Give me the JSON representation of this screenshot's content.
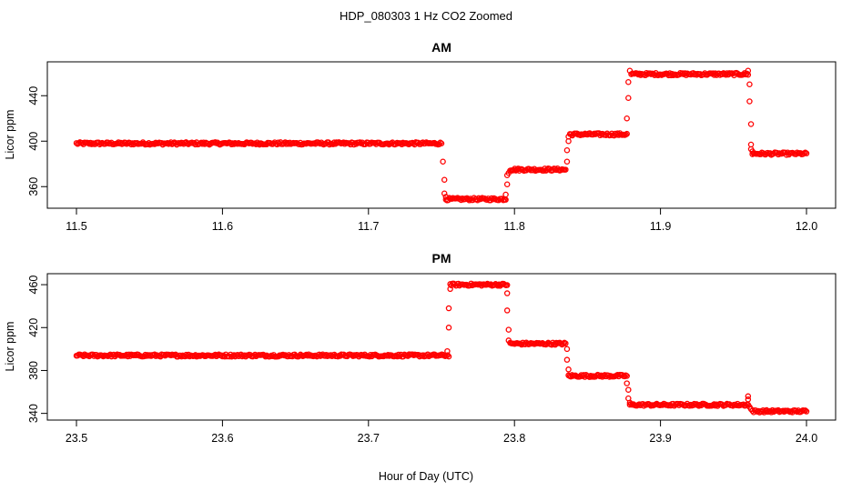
{
  "figure": {
    "title": "HDP_080303  1 Hz CO2 Zoomed",
    "xlabel": "Hour of Day (UTC)",
    "marker_color": "#ff0000"
  },
  "chart_data": [
    {
      "type": "scatter",
      "title": "AM",
      "xlabel": "",
      "ylabel": "Licor ppm",
      "xlim": [
        11.5,
        12.0
      ],
      "ylim": [
        345,
        465
      ],
      "xticks": [
        11.5,
        11.6,
        11.7,
        11.8,
        11.9,
        12.0
      ],
      "xtick_labels": [
        "11.5",
        "11.6",
        "11.7",
        "11.8",
        "11.9",
        "12.0"
      ],
      "yticks": [
        360,
        400,
        440
      ],
      "ytick_labels": [
        "360",
        "400",
        "440"
      ],
      "grid": false,
      "marker": "open-circle",
      "color": "#ff0000",
      "segments": [
        {
          "x_start": 11.5,
          "x_end": 11.75,
          "y": 398
        },
        {
          "x_start": 11.753,
          "x_end": 11.794,
          "y": 349
        },
        {
          "x_start": 11.797,
          "x_end": 11.835,
          "y": 375
        },
        {
          "x_start": 11.838,
          "x_end": 11.877,
          "y": 406
        },
        {
          "x_start": 11.88,
          "x_end": 11.96,
          "y": 459
        },
        {
          "x_start": 11.963,
          "x_end": 12.0,
          "y": 389
        }
      ],
      "transitions": [
        {
          "x": [
            11.751,
            11.752,
            11.752,
            11.753
          ],
          "y": [
            382,
            366,
            354,
            351
          ]
        },
        {
          "x": [
            11.794,
            11.795,
            11.795,
            11.796
          ],
          "y": [
            353,
            362,
            370,
            372
          ]
        },
        {
          "x": [
            11.836,
            11.836,
            11.837,
            11.837
          ],
          "y": [
            382,
            392,
            400,
            404
          ]
        },
        {
          "x": [
            11.877,
            11.878,
            11.878,
            11.879
          ],
          "y": [
            420,
            438,
            452,
            462
          ]
        },
        {
          "x": [
            11.96,
            11.961,
            11.961,
            11.962
          ],
          "y": [
            462,
            450,
            435,
            415
          ]
        },
        {
          "x": [
            11.962,
            11.962,
            11.963
          ],
          "y": [
            397,
            393,
            391
          ]
        }
      ]
    },
    {
      "type": "scatter",
      "title": "PM",
      "xlabel": "",
      "ylabel": "Licor ppm",
      "xlim": [
        23.5,
        24.0
      ],
      "ylim": [
        338,
        466
      ],
      "xticks": [
        23.5,
        23.6,
        23.7,
        23.8,
        23.9,
        24.0
      ],
      "xtick_labels": [
        "23.5",
        "23.6",
        "23.7",
        "23.8",
        "23.9",
        "24.0"
      ],
      "yticks": [
        340,
        380,
        420,
        460
      ],
      "ytick_labels": [
        "340",
        "380",
        "420",
        "460"
      ],
      "grid": false,
      "marker": "open-circle",
      "color": "#ff0000",
      "segments": [
        {
          "x_start": 23.5,
          "x_end": 23.755,
          "y": 394
        },
        {
          "x_start": 23.756,
          "x_end": 23.795,
          "y": 460
        },
        {
          "x_start": 23.797,
          "x_end": 23.835,
          "y": 405
        },
        {
          "x_start": 23.837,
          "x_end": 23.877,
          "y": 375
        },
        {
          "x_start": 23.879,
          "x_end": 23.96,
          "y": 348
        },
        {
          "x_start": 23.963,
          "x_end": 24.0,
          "y": 342
        }
      ],
      "transitions": [
        {
          "x": [
            23.754,
            23.755,
            23.755,
            23.756
          ],
          "y": [
            398,
            420,
            438,
            456
          ]
        },
        {
          "x": [
            23.795,
            23.795,
            23.796,
            23.796
          ],
          "y": [
            452,
            436,
            418,
            408
          ]
        },
        {
          "x": [
            23.836,
            23.836,
            23.837
          ],
          "y": [
            400,
            390,
            381
          ]
        },
        {
          "x": [
            23.877,
            23.878,
            23.878,
            23.879
          ],
          "y": [
            368,
            362,
            354,
            350
          ]
        },
        {
          "x": [
            23.96,
            23.96,
            23.961,
            23.962
          ],
          "y": [
            356,
            353,
            346,
            344
          ]
        }
      ]
    }
  ]
}
